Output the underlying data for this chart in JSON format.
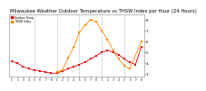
{
  "title": "Milwaukee Weather Outdoor Temperature vs THSW Index per Hour (24 Hours)",
  "title_fontsize": 3.8,
  "background_color": "#ffffff",
  "grid_color": "#999999",
  "hours": [
    0,
    1,
    2,
    3,
    4,
    5,
    6,
    7,
    8,
    9,
    10,
    11,
    12,
    13,
    14,
    15,
    16,
    17,
    18,
    19,
    20,
    21,
    22,
    23
  ],
  "temp": [
    42,
    40,
    37,
    35,
    34,
    33,
    32,
    31,
    31,
    33,
    35,
    37,
    39,
    41,
    44,
    47,
    50,
    52,
    50,
    48,
    44,
    41,
    39,
    55
  ],
  "thsw": [
    null,
    null,
    null,
    null,
    null,
    null,
    null,
    null,
    32,
    34,
    45,
    55,
    68,
    75,
    80,
    78,
    70,
    62,
    52,
    44,
    38,
    35,
    null,
    60
  ],
  "temp_color": "#dd0000",
  "thsw_color": "#ff8800",
  "black_color": "#111111",
  "ylim_min": 28,
  "ylim_max": 85,
  "yticks": [
    30,
    40,
    50,
    60,
    70,
    80
  ],
  "ytick_labels": [
    "3.",
    "4.",
    "5.",
    "6.",
    "7.",
    "8."
  ],
  "marker_size": 1.8,
  "line_width": 0.6,
  "legend_labels": [
    "Outdoor Temp",
    "THSW Index"
  ],
  "vgrid_hours": [
    4,
    8,
    12,
    16,
    20
  ],
  "xtick_labels": [
    "1",
    "2",
    "3",
    "4",
    "5",
    "6",
    "7",
    "8",
    "1",
    "2",
    "3",
    "4",
    "5",
    "6",
    "7",
    "8",
    "1",
    "2",
    "3",
    "4",
    "5",
    "6",
    "7",
    "8"
  ]
}
